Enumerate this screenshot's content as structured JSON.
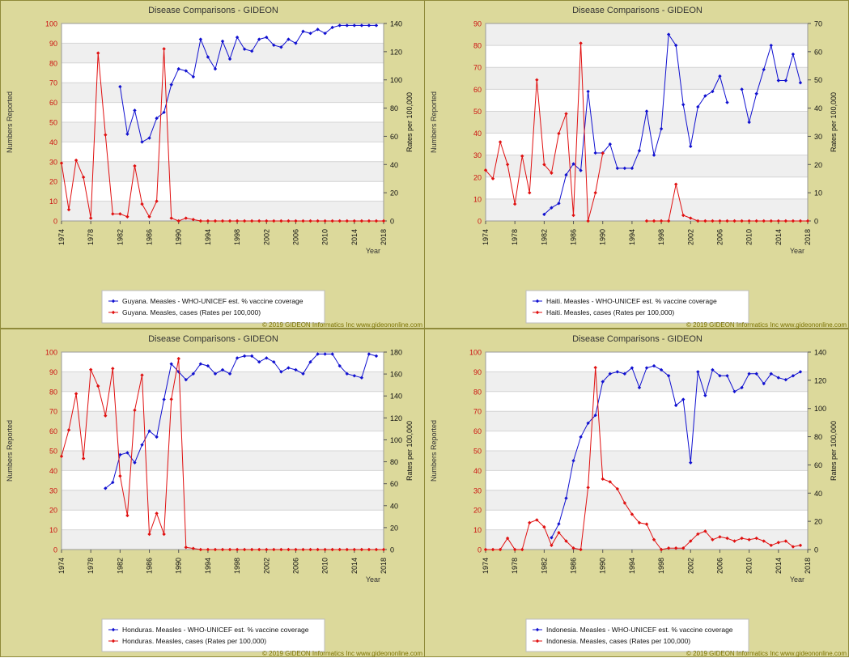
{
  "years_axis": [
    "1974",
    "1978",
    "1982",
    "1986",
    "1990",
    "1994",
    "1998",
    "2002",
    "2006",
    "2010",
    "2014",
    "2018"
  ],
  "chart_data": [
    {
      "type": "line",
      "title": "Disease Comparisons - GIDEON",
      "ylabel": "Numbers Reported",
      "y2label": "Rates per 100,000",
      "xlabel": "Year",
      "xlim": [
        1974,
        2018
      ],
      "ylim": [
        0,
        100
      ],
      "y2lim": [
        0,
        140
      ],
      "yticks": [
        "0",
        "10",
        "20",
        "30",
        "40",
        "50",
        "60",
        "70",
        "80",
        "90",
        "100"
      ],
      "y2ticks": [
        "0",
        "20",
        "40",
        "60",
        "80",
        "100",
        "120",
        "140"
      ],
      "legend_position": "bottom",
      "copyright": "© 2019 GIDEON Informatics Inc www.gideononline.com",
      "series": [
        {
          "name": "Guyana. Measles - WHO-UNICEF est. % vaccine coverage",
          "color": "#1010d0",
          "axis": "left",
          "x": [
            1982,
            1983,
            1984,
            1985,
            1986,
            1987,
            1988,
            1989,
            1990,
            1991,
            1992,
            1993,
            1994,
            1995,
            1996,
            1997,
            1998,
            1999,
            2000,
            2001,
            2002,
            2003,
            2004,
            2005,
            2006,
            2007,
            2008,
            2009,
            2010,
            2011,
            2012,
            2013,
            2014,
            2015,
            2016,
            2017
          ],
          "y": [
            68,
            44,
            56,
            40,
            42,
            52,
            55,
            69,
            77,
            76,
            73,
            92,
            83,
            77,
            91,
            82,
            93,
            87,
            86,
            92,
            93,
            89,
            88,
            92,
            90,
            96,
            95,
            97,
            95,
            98,
            99,
            99,
            99,
            99,
            99,
            99
          ]
        },
        {
          "name": "Guyana. Measles, cases (Rates per 100,000)",
          "color": "#e01010",
          "axis": "right",
          "x": [
            1974,
            1975,
            1976,
            1977,
            1978,
            1979,
            1980,
            1981,
            1982,
            1983,
            1984,
            1985,
            1986,
            1987,
            1988,
            1989,
            1990,
            1991,
            1992,
            1993,
            1994,
            1995,
            1996,
            1997,
            1998,
            1999,
            2000,
            2001,
            2002,
            2003,
            2004,
            2005,
            2006,
            2007,
            2008,
            2009,
            2010,
            2011,
            2012,
            2013,
            2014,
            2015,
            2016,
            2017,
            2018
          ],
          "y": [
            41,
            8,
            43,
            31,
            2,
            119,
            61,
            5,
            5,
            3,
            39,
            12,
            3,
            14,
            122,
            2,
            0,
            2,
            1,
            0,
            0,
            0,
            0,
            0,
            0,
            0,
            0,
            0,
            0,
            0,
            0,
            0,
            0,
            0,
            0,
            0,
            0,
            0,
            0,
            0,
            0,
            0,
            0,
            0,
            0
          ]
        }
      ]
    },
    {
      "type": "line",
      "title": "Disease Comparisons - GIDEON",
      "ylabel": "Numbers Reported",
      "y2label": "Rates per 100,000",
      "xlabel": "Year",
      "xlim": [
        1974,
        2018
      ],
      "ylim": [
        0,
        90
      ],
      "y2lim": [
        0,
        70
      ],
      "yticks": [
        "0",
        "10",
        "20",
        "30",
        "40",
        "50",
        "60",
        "70",
        "80",
        "90"
      ],
      "y2ticks": [
        "0",
        "10",
        "20",
        "30",
        "40",
        "50",
        "60",
        "70"
      ],
      "legend_position": "bottom",
      "copyright": "© 2019 GIDEON Informatics Inc www.gideononline.com",
      "series": [
        {
          "name": "Haiti. Measles - WHO-UNICEF est. % vaccine coverage",
          "color": "#1010d0",
          "axis": "left",
          "segments": [
            {
              "x": [
                1982,
                1983,
                1984,
                1985,
                1986,
                1987,
                1988,
                1989,
                1990,
                1991,
                1992,
                1993,
                1994,
                1995,
                1996,
                1997,
                1998,
                1999,
                2000,
                2001,
                2002,
                2003,
                2004,
                2005,
                2006,
                2007
              ],
              "y": [
                3,
                6,
                8,
                21,
                26,
                23,
                59,
                31,
                31,
                35,
                24,
                24,
                24,
                32,
                50,
                30,
                42,
                85,
                80,
                53,
                34,
                52,
                57,
                59,
                66,
                54
              ]
            },
            {
              "x": [
                2009,
                2010,
                2011,
                2012,
                2013,
                2014,
                2015,
                2016,
                2017
              ],
              "y": [
                60,
                45,
                58,
                69,
                80,
                64,
                64,
                76,
                63
              ]
            }
          ]
        },
        {
          "name": "Haiti. Measles, cases (Rates per 100,000)",
          "color": "#e01010",
          "axis": "right",
          "segments": [
            {
              "x": [
                1974,
                1975,
                1976,
                1977,
                1978,
                1979,
                1980,
                1981,
                1982,
                1983,
                1984,
                1985,
                1986,
                1987,
                1988,
                1989,
                1990
              ],
              "y": [
                18,
                15,
                28,
                20,
                6,
                23,
                10,
                50,
                20,
                17,
                31,
                38,
                2,
                63,
                0,
                10,
                24
              ]
            },
            {
              "x": [
                1996,
                1997,
                1998,
                1999,
                2000,
                2001,
                2002,
                2003,
                2004,
                2005,
                2006,
                2007,
                2008,
                2009,
                2010,
                2011,
                2012,
                2013,
                2014,
                2015,
                2016,
                2017,
                2018
              ],
              "y": [
                0,
                0,
                0,
                0,
                13,
                2,
                1,
                0,
                0,
                0,
                0,
                0,
                0,
                0,
                0,
                0,
                0,
                0,
                0,
                0,
                0,
                0,
                0
              ]
            }
          ]
        }
      ]
    },
    {
      "type": "line",
      "title": "Disease Comparisons - GIDEON",
      "ylabel": "Numbers Reported",
      "y2label": "Rates per 100,000",
      "xlabel": "Year",
      "xlim": [
        1974,
        2018
      ],
      "ylim": [
        0,
        100
      ],
      "y2lim": [
        0,
        180
      ],
      "yticks": [
        "0",
        "10",
        "20",
        "30",
        "40",
        "50",
        "60",
        "70",
        "80",
        "90",
        "100"
      ],
      "y2ticks": [
        "0",
        "20",
        "40",
        "60",
        "80",
        "100",
        "120",
        "140",
        "160",
        "180"
      ],
      "legend_position": "bottom",
      "copyright": "© 2019 GIDEON Informatics Inc www.gideononline.com",
      "series": [
        {
          "name": "Honduras. Measles - WHO-UNICEF est. % vaccine coverage",
          "color": "#1010d0",
          "axis": "left",
          "x": [
            1980,
            1981,
            1982,
            1983,
            1984,
            1985,
            1986,
            1987,
            1988,
            1989,
            1990,
            1991,
            1992,
            1993,
            1994,
            1995,
            1996,
            1997,
            1998,
            1999,
            2000,
            2001,
            2002,
            2003,
            2004,
            2005,
            2006,
            2007,
            2008,
            2009,
            2010,
            2011,
            2012,
            2013,
            2014,
            2015,
            2016,
            2017
          ],
          "y": [
            31,
            34,
            48,
            49,
            44,
            53,
            60,
            57,
            76,
            94,
            90,
            86,
            89,
            94,
            93,
            89,
            91,
            89,
            97,
            98,
            98,
            95,
            97,
            95,
            90,
            92,
            91,
            89,
            95,
            99,
            99,
            99,
            93,
            89,
            88,
            87,
            99,
            98
          ]
        },
        {
          "name": "Honduras. Measles, cases (Rates per 100,000)",
          "color": "#e01010",
          "axis": "right",
          "x": [
            1974,
            1975,
            1976,
            1977,
            1978,
            1979,
            1980,
            1981,
            1982,
            1983,
            1984,
            1985,
            1986,
            1987,
            1988,
            1989,
            1990,
            1991,
            1992,
            1993,
            1994,
            1995,
            1996,
            1997,
            1998,
            1999,
            2000,
            2001,
            2002,
            2003,
            2004,
            2005,
            2006,
            2007,
            2008,
            2009,
            2010,
            2011,
            2012,
            2013,
            2014,
            2015,
            2016,
            2017,
            2018
          ],
          "y": [
            85,
            109,
            142,
            83,
            164,
            149,
            122,
            165,
            67,
            31,
            127,
            159,
            14,
            33,
            14,
            137,
            174,
            2,
            1,
            0,
            0,
            0,
            0,
            0,
            0,
            0,
            0,
            0,
            0,
            0,
            0,
            0,
            0,
            0,
            0,
            0,
            0,
            0,
            0,
            0,
            0,
            0,
            0,
            0,
            0
          ]
        }
      ]
    },
    {
      "type": "line",
      "title": "Disease Comparisons - GIDEON",
      "ylabel": "Numbers Reported",
      "y2label": "Rates per 100,000",
      "xlabel": "Year",
      "xlim": [
        1974,
        2018
      ],
      "ylim": [
        0,
        100
      ],
      "y2lim": [
        0,
        140
      ],
      "yticks": [
        "0",
        "10",
        "20",
        "30",
        "40",
        "50",
        "60",
        "70",
        "80",
        "90",
        "100"
      ],
      "y2ticks": [
        "0",
        "20",
        "40",
        "60",
        "80",
        "100",
        "120",
        "140"
      ],
      "legend_position": "bottom",
      "copyright": "© 2019 GIDEON Informatics Inc www.gideononline.com",
      "series": [
        {
          "name": "Indonesia. Measles - WHO-UNICEF est. % vaccine coverage",
          "color": "#1010d0",
          "axis": "left",
          "x": [
            1983,
            1984,
            1985,
            1986,
            1987,
            1988,
            1989,
            1990,
            1991,
            1992,
            1993,
            1994,
            1995,
            1996,
            1997,
            1998,
            1999,
            2000,
            2001,
            2002,
            2003,
            2004,
            2005,
            2006,
            2007,
            2008,
            2009,
            2010,
            2011,
            2012,
            2013,
            2014,
            2015,
            2016,
            2017
          ],
          "y": [
            6,
            13,
            26,
            45,
            57,
            64,
            68,
            85,
            89,
            90,
            89,
            92,
            82,
            92,
            93,
            91,
            88,
            73,
            76,
            44,
            90,
            78,
            91,
            88,
            88,
            80,
            82,
            89,
            89,
            84,
            89,
            87,
            86,
            88,
            90
          ]
        },
        {
          "name": "Indonesia. Measles, cases (Rates per 100,000)",
          "color": "#e01010",
          "axis": "right",
          "x": [
            1974,
            1975,
            1976,
            1977,
            1978,
            1979,
            1980,
            1981,
            1982,
            1983,
            1984,
            1985,
            1986,
            1987,
            1988,
            1989,
            1990,
            1991,
            1992,
            1993,
            1994,
            1995,
            1996,
            1997,
            1998,
            1999,
            2000,
            2001,
            2002,
            2003,
            2004,
            2005,
            2006,
            2007,
            2008,
            2009,
            2010,
            2011,
            2012,
            2013,
            2014,
            2015,
            2016,
            2017
          ],
          "y": [
            0,
            0,
            0,
            8,
            0,
            0,
            19,
            21,
            16,
            3,
            12,
            6,
            1,
            0,
            44,
            129,
            50,
            48,
            43,
            33,
            25,
            19,
            18,
            7,
            0,
            1,
            1,
            1,
            6,
            11,
            13,
            7,
            9,
            8,
            6,
            8,
            7,
            8,
            6,
            3,
            5,
            6,
            2,
            3
          ]
        }
      ]
    }
  ]
}
